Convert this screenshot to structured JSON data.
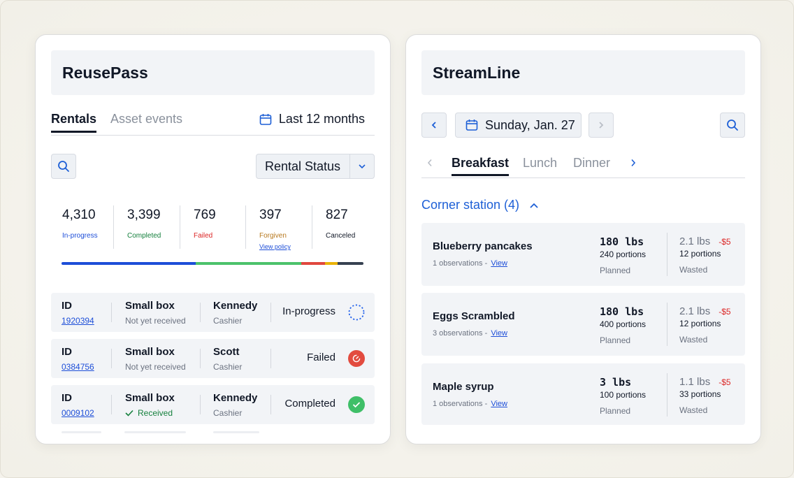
{
  "reusepass": {
    "title": "ReusePass",
    "tabs": [
      {
        "label": "Rentals"
      },
      {
        "label": "Asset events"
      }
    ],
    "period": "Last 12 months",
    "status_filter": "Rental Status",
    "stats": [
      {
        "value": "4,310",
        "label": "In-progress",
        "color": "#1d4ed8"
      },
      {
        "value": "3,399",
        "label": "Completed",
        "color": "#15803d"
      },
      {
        "value": "769",
        "label": "Failed",
        "color": "#dc2626"
      },
      {
        "value": "397",
        "label": "Forgiven",
        "color": "#b7791f",
        "link": "View policy"
      },
      {
        "value": "827",
        "label": "Canceled",
        "color": "#111827"
      }
    ],
    "progress_segments": [
      {
        "name": "In-progress",
        "count": 4310,
        "color": "#1d4ed8"
      },
      {
        "name": "Completed",
        "count": 3399,
        "color": "#4cc26b"
      },
      {
        "name": "Failed",
        "count": 769,
        "color": "#e0473e"
      },
      {
        "name": "Forgiven",
        "count": 397,
        "color": "#eab308"
      },
      {
        "name": "Canceled",
        "count": 827,
        "color": "#374151"
      }
    ],
    "rows": [
      {
        "id_label": "ID",
        "id": "1920394",
        "item": "Small box",
        "item_status": "Not yet received",
        "person": "Kennedy",
        "role": "Cashier",
        "status": "In-progress"
      },
      {
        "id_label": "ID",
        "id": "0384756",
        "item": "Small box",
        "item_status": "Not yet received",
        "person": "Scott",
        "role": "Cashier",
        "status": "Failed"
      },
      {
        "id_label": "ID",
        "id": "0009102",
        "item": "Small box",
        "item_status": "Received",
        "person": "Kennedy",
        "role": "Cashier",
        "status": "Completed"
      }
    ]
  },
  "streamline": {
    "title": "StreamLine",
    "date": "Sunday, Jan. 27",
    "meals": [
      {
        "label": "Breakfast"
      },
      {
        "label": "Lunch"
      },
      {
        "label": "Dinner"
      }
    ],
    "station": "Corner station (4)",
    "items": [
      {
        "name": "Blueberry pancakes",
        "observations": "1 observations -",
        "view": "View",
        "planned_weight": "180 lbs",
        "planned_portions": "240 portions",
        "planned_caption": "Planned",
        "wasted_weight": "2.1 lbs",
        "wasted_cost": "-$5",
        "wasted_portions": "12 portions",
        "wasted_caption": "Wasted"
      },
      {
        "name": "Eggs Scrambled",
        "observations": "3 observations -",
        "view": "View",
        "planned_weight": "180 lbs",
        "planned_portions": "400 portions",
        "planned_caption": "Planned",
        "wasted_weight": "2.1 lbs",
        "wasted_cost": "-$5",
        "wasted_portions": "12 portions",
        "wasted_caption": "Wasted"
      },
      {
        "name": "Maple syrup",
        "observations": "1 observations -",
        "view": "View",
        "planned_weight": "3 lbs",
        "planned_portions": "100 portions",
        "planned_caption": "Planned",
        "wasted_weight": "1.1 lbs",
        "wasted_cost": "-$5",
        "wasted_portions": "33 portions",
        "wasted_caption": "Wasted"
      }
    ]
  }
}
